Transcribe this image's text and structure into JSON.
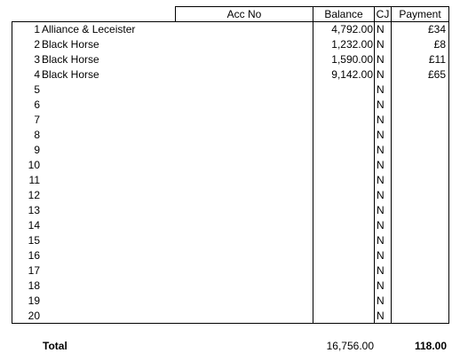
{
  "header": {
    "acc_no": "Acc No",
    "balance": "Balance",
    "cj": "CJ",
    "payment": "Payment"
  },
  "rows": [
    {
      "num": "1",
      "name": "Alliance & Leceister",
      "balance": "4,792.00",
      "cj": "N",
      "payment": "£34"
    },
    {
      "num": "2",
      "name": "Black Horse",
      "balance": "1,232.00",
      "cj": "N",
      "payment": "£8"
    },
    {
      "num": "3",
      "name": "Black Horse",
      "balance": "1,590.00",
      "cj": "N",
      "payment": "£11"
    },
    {
      "num": "4",
      "name": "Black Horse",
      "balance": "9,142.00",
      "cj": "N",
      "payment": "£65"
    },
    {
      "num": "5",
      "name": "",
      "balance": "",
      "cj": "N",
      "payment": ""
    },
    {
      "num": "6",
      "name": "",
      "balance": "",
      "cj": "N",
      "payment": ""
    },
    {
      "num": "7",
      "name": "",
      "balance": "",
      "cj": "N",
      "payment": ""
    },
    {
      "num": "8",
      "name": "",
      "balance": "",
      "cj": "N",
      "payment": ""
    },
    {
      "num": "9",
      "name": "",
      "balance": "",
      "cj": "N",
      "payment": ""
    },
    {
      "num": "10",
      "name": "",
      "balance": "",
      "cj": "N",
      "payment": ""
    },
    {
      "num": "11",
      "name": "",
      "balance": "",
      "cj": "N",
      "payment": ""
    },
    {
      "num": "12",
      "name": "",
      "balance": "",
      "cj": "N",
      "payment": ""
    },
    {
      "num": "13",
      "name": "",
      "balance": "",
      "cj": "N",
      "payment": ""
    },
    {
      "num": "14",
      "name": "",
      "balance": "",
      "cj": "N",
      "payment": ""
    },
    {
      "num": "15",
      "name": "",
      "balance": "",
      "cj": "N",
      "payment": ""
    },
    {
      "num": "16",
      "name": "",
      "balance": "",
      "cj": "N",
      "payment": ""
    },
    {
      "num": "17",
      "name": "",
      "balance": "",
      "cj": "N",
      "payment": ""
    },
    {
      "num": "18",
      "name": "",
      "balance": "",
      "cj": "N",
      "payment": ""
    },
    {
      "num": "19",
      "name": "",
      "balance": "",
      "cj": "N",
      "payment": ""
    },
    {
      "num": "20",
      "name": "",
      "balance": "",
      "cj": "N",
      "payment": ""
    }
  ],
  "totals": {
    "label": "Total",
    "balance": "16,756.00",
    "payment": "118.00"
  }
}
